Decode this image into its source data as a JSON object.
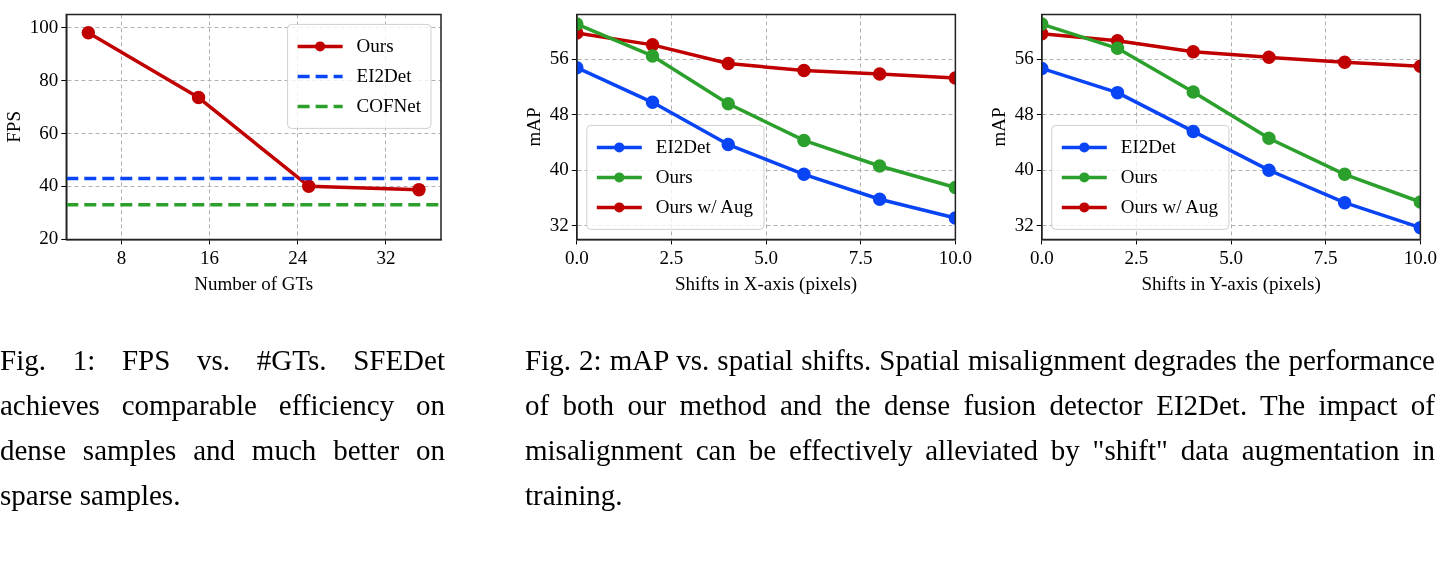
{
  "chart_data": [
    {
      "type": "line",
      "xlabel": "Number of GTs",
      "ylabel": "FPS",
      "x": [
        5,
        15,
        25,
        35
      ],
      "xlim": [
        3,
        37
      ],
      "xticks": [
        8,
        16,
        24,
        32
      ],
      "ylim": [
        20,
        105
      ],
      "yticks": [
        20,
        40,
        60,
        80,
        100
      ],
      "grid": true,
      "legend": "top right",
      "marker": "circle",
      "line_style": "solid",
      "series": [
        {
          "name": "Ours",
          "color": "#c00000",
          "values": [
            98.1,
            73.6,
            40.1,
            38.8
          ]
        }
      ],
      "ref_lines": [
        {
          "axis": "y",
          "value": 43.0,
          "label": "EI2Det",
          "color": "#0a45f5",
          "line_style": "dashed"
        },
        {
          "axis": "y",
          "value": 33.1,
          "label": "COFNet",
          "color": "#2ca02c",
          "line_style": "dashed"
        }
      ],
      "annotations": [
        "Fig. 1: FPS vs. #GTs. SFEDet achieves comparable efficiency on dense samples and much better on sparse samples."
      ]
    },
    {
      "type": "line",
      "xlabel": "Shifts in X-axis (pixels)",
      "ylabel": "mAP",
      "x": [
        0,
        2,
        4,
        6,
        8,
        10
      ],
      "xlim": [
        0,
        10
      ],
      "xticks": [
        {
          "value": 0,
          "label": "0.0"
        },
        {
          "value": 2.5,
          "label": "2.5"
        },
        {
          "value": 5,
          "label": "5.0"
        },
        {
          "value": 7.5,
          "label": "7.5"
        },
        {
          "value": 10,
          "label": "10.0"
        }
      ],
      "ylim": [
        30,
        62.5
      ],
      "yticks": [
        32,
        40,
        48,
        56
      ],
      "grid": true,
      "legend": "bottom left",
      "marker": "circle",
      "line_style": "solid",
      "series": [
        {
          "name": "EI2Det",
          "color": "#0a45f5",
          "values": [
            54.8,
            49.8,
            43.7,
            39.4,
            35.8,
            33.1
          ]
        },
        {
          "name": "Ours",
          "color": "#2ca02c",
          "values": [
            61.1,
            56.5,
            49.6,
            44.3,
            40.6,
            37.5
          ]
        },
        {
          "name": "Ours w/ Aug",
          "color": "#c00000",
          "values": [
            59.8,
            58.1,
            55.4,
            54.4,
            53.9,
            53.3
          ]
        }
      ],
      "annotations": [
        "Fig. 2: mAP vs. spatial shifts. Spatial misalignment degrades the performance of both our method and the dense fusion detector EI2Det. The impact of misalignment can be effectively alleviated by \"shift\" data augmentation in training."
      ]
    },
    {
      "type": "line",
      "xlabel": "Shifts in Y-axis (pixels)",
      "ylabel": "mAP",
      "x": [
        0,
        2,
        4,
        6,
        8,
        10
      ],
      "xlim": [
        0,
        10
      ],
      "xticks": [
        {
          "value": 0,
          "label": "0.0"
        },
        {
          "value": 2.5,
          "label": "2.5"
        },
        {
          "value": 5,
          "label": "5.0"
        },
        {
          "value": 7.5,
          "label": "7.5"
        },
        {
          "value": 10,
          "label": "10.0"
        }
      ],
      "ylim": [
        30,
        62.5
      ],
      "yticks": [
        32,
        40,
        48,
        56
      ],
      "grid": true,
      "legend": "bottom left",
      "marker": "circle",
      "line_style": "solid",
      "series": [
        {
          "name": "EI2Det",
          "color": "#0a45f5",
          "values": [
            54.7,
            51.2,
            45.6,
            40.0,
            35.3,
            31.7
          ]
        },
        {
          "name": "Ours",
          "color": "#2ca02c",
          "values": [
            61.1,
            57.6,
            51.3,
            44.6,
            39.4,
            35.4
          ]
        },
        {
          "name": "Ours w/ Aug",
          "color": "#c00000",
          "values": [
            59.7,
            58.7,
            57.1,
            56.3,
            55.6,
            55.0
          ]
        }
      ]
    }
  ]
}
